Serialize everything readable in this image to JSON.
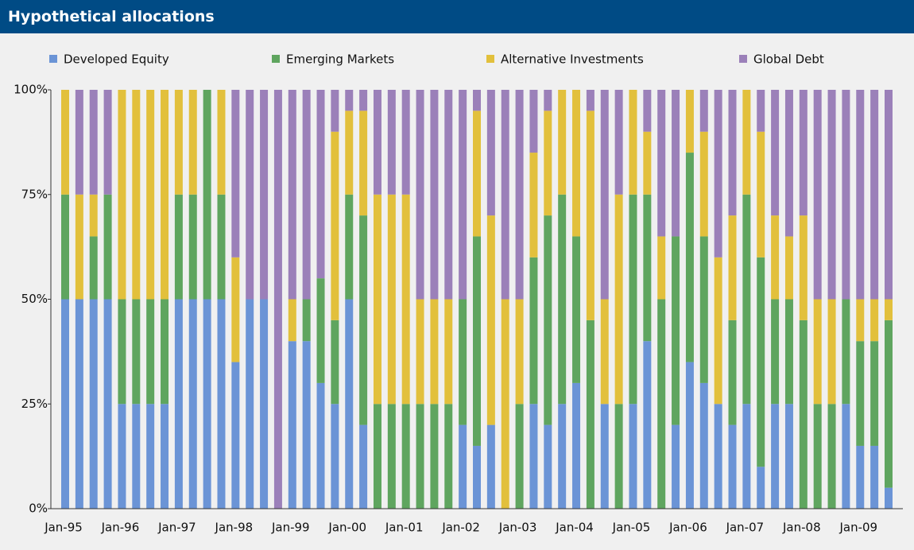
{
  "chart_data": {
    "type": "stacked-bar",
    "title": "Hypothetical allocations",
    "categories": [
      "Jan-95",
      null,
      null,
      null,
      "Jan-96",
      null,
      null,
      null,
      "Jan-97",
      null,
      null,
      null,
      "Jan-98",
      null,
      null,
      null,
      "Jan-99",
      null,
      null,
      null,
      "Jan-00",
      null,
      null,
      null,
      "Jan-01",
      null,
      null,
      null,
      "Jan-02",
      null,
      null,
      null,
      "Jan-03",
      null,
      null,
      null,
      "Jan-04",
      null,
      null,
      null,
      "Jan-05",
      null,
      null,
      null,
      "Jan-06",
      null,
      null,
      null,
      "Jan-07",
      null,
      null,
      null,
      "Jan-08",
      null,
      null,
      null,
      "Jan-09",
      null,
      null
    ],
    "series": [
      {
        "name": "Developed Equity",
        "color": "#6b94d6",
        "values": [
          50,
          50,
          50,
          50,
          25,
          25,
          25,
          25,
          50,
          50,
          50,
          50,
          35,
          50,
          50,
          0,
          40,
          40,
          30,
          25,
          50,
          20,
          0,
          0,
          0,
          0,
          0,
          0,
          20,
          15,
          20,
          0,
          0,
          25,
          20,
          25,
          30,
          0,
          25,
          0,
          25,
          40,
          0,
          20,
          35,
          30,
          25,
          20,
          25,
          10,
          25,
          25,
          0,
          0,
          0,
          25,
          15,
          15,
          5
        ]
      },
      {
        "name": "Emerging Markets",
        "color": "#5fa55f",
        "values": [
          25,
          0,
          15,
          25,
          25,
          25,
          25,
          25,
          25,
          25,
          50,
          25,
          0,
          0,
          0,
          0,
          0,
          10,
          25,
          20,
          25,
          50,
          25,
          25,
          25,
          25,
          25,
          25,
          30,
          50,
          0,
          0,
          25,
          35,
          50,
          50,
          35,
          45,
          0,
          25,
          50,
          35,
          50,
          45,
          50,
          35,
          0,
          25,
          50,
          50,
          25,
          25,
          45,
          25,
          25,
          25,
          25,
          25,
          40
        ]
      },
      {
        "name": "Alternative Investments",
        "color": "#e2c03c",
        "values": [
          25,
          25,
          10,
          0,
          50,
          50,
          50,
          50,
          25,
          25,
          0,
          25,
          25,
          0,
          0,
          0,
          10,
          0,
          0,
          45,
          20,
          25,
          50,
          50,
          50,
          25,
          25,
          25,
          0,
          30,
          50,
          50,
          25,
          25,
          25,
          25,
          35,
          50,
          25,
          50,
          25,
          15,
          15,
          0,
          15,
          25,
          35,
          25,
          25,
          30,
          20,
          15,
          25,
          25,
          25,
          0,
          10,
          10,
          5
        ]
      },
      {
        "name": "Global Debt",
        "color": "#9b80b9",
        "values": [
          0,
          25,
          25,
          25,
          0,
          0,
          0,
          0,
          0,
          0,
          0,
          0,
          40,
          50,
          50,
          100,
          50,
          50,
          45,
          10,
          5,
          5,
          25,
          25,
          25,
          50,
          50,
          50,
          50,
          5,
          30,
          50,
          50,
          15,
          5,
          0,
          0,
          5,
          50,
          25,
          0,
          10,
          35,
          35,
          0,
          10,
          40,
          30,
          0,
          10,
          30,
          35,
          30,
          50,
          50,
          50,
          50,
          50,
          50
        ]
      }
    ],
    "ylim": [
      0,
      100
    ],
    "yticks": [
      {
        "value": 0,
        "label": "0%"
      },
      {
        "value": 25,
        "label": "25%"
      },
      {
        "value": 50,
        "label": "50%"
      },
      {
        "value": 75,
        "label": "75%"
      },
      {
        "value": 100,
        "label": "100%"
      }
    ],
    "legend": "top"
  }
}
